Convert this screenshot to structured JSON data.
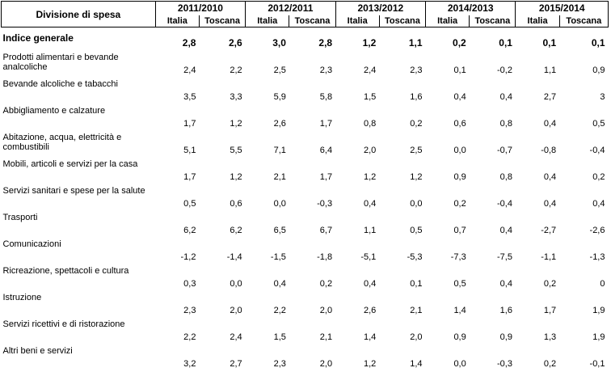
{
  "header": {
    "division_label": "Divisione di spesa",
    "periods": [
      "2011/2010",
      "2012/2011",
      "2013/2012",
      "2014/2013",
      "2015/2014"
    ],
    "sub_labels": [
      "Italia",
      "Toscana"
    ]
  },
  "rows": [
    {
      "label": "Indice generale",
      "values": [
        "2,8",
        "2,6",
        "3,0",
        "2,8",
        "1,2",
        "1,1",
        "0,2",
        "0,1",
        "0,1",
        "0,1"
      ]
    },
    {
      "label": "Prodotti alimentari e bevande analcoliche",
      "values": [
        "2,4",
        "2,2",
        "2,5",
        "2,3",
        "2,4",
        "2,3",
        "0,1",
        "-0,2",
        "1,1",
        "0,9"
      ]
    },
    {
      "label": "Bevande alcoliche e tabacchi",
      "values": [
        "3,5",
        "3,3",
        "5,9",
        "5,8",
        "1,5",
        "1,6",
        "0,4",
        "0,4",
        "2,7",
        "3"
      ]
    },
    {
      "label": "Abbigliamento e calzature",
      "values": [
        "1,7",
        "1,2",
        "2,6",
        "1,7",
        "0,8",
        "0,2",
        "0,6",
        "0,8",
        "0,4",
        "0,5"
      ]
    },
    {
      "label": "Abitazione, acqua, elettricità e combustibili",
      "values": [
        "5,1",
        "5,5",
        "7,1",
        "6,4",
        "2,0",
        "2,5",
        "0,0",
        "-0,7",
        "-0,8",
        "-0,4"
      ]
    },
    {
      "label": "Mobili, articoli e servizi per la casa",
      "values": [
        "1,7",
        "1,2",
        "2,1",
        "1,7",
        "1,2",
        "1,2",
        "0,9",
        "0,8",
        "0,4",
        "0,2"
      ]
    },
    {
      "label": "Servizi sanitari e spese per la salute",
      "values": [
        "0,5",
        "0,6",
        "0,0",
        "-0,3",
        "0,4",
        "0,0",
        "0,2",
        "-0,4",
        "0,4",
        "0,4"
      ]
    },
    {
      "label": "Trasporti",
      "values": [
        "6,2",
        "6,2",
        "6,5",
        "6,7",
        "1,1",
        "0,5",
        "0,7",
        "0,4",
        "-2,7",
        "-2,6"
      ]
    },
    {
      "label": "Comunicazioni",
      "values": [
        "-1,2",
        "-1,4",
        "-1,5",
        "-1,8",
        "-5,1",
        "-5,3",
        "-7,3",
        "-7,5",
        "-1,1",
        "-1,3"
      ]
    },
    {
      "label": "Ricreazione, spettacoli e cultura",
      "values": [
        "0,3",
        "0,0",
        "0,4",
        "0,2",
        "0,4",
        "0,1",
        "0,5",
        "0,4",
        "0,2",
        "0"
      ]
    },
    {
      "label": "Istruzione",
      "values": [
        "2,3",
        "2,0",
        "2,2",
        "2,0",
        "2,6",
        "2,1",
        "1,4",
        "1,6",
        "1,7",
        "1,9"
      ]
    },
    {
      "label": "Servizi ricettivi e di ristorazione",
      "values": [
        "2,2",
        "2,4",
        "1,5",
        "2,1",
        "1,4",
        "2,0",
        "0,9",
        "0,9",
        "1,3",
        "1,9"
      ]
    },
    {
      "label": "Altri beni e servizi",
      "values": [
        "3,2",
        "2,7",
        "2,3",
        "2,0",
        "1,2",
        "1,4",
        "0,0",
        "-0,3",
        "0,2",
        "-0,1"
      ]
    }
  ]
}
